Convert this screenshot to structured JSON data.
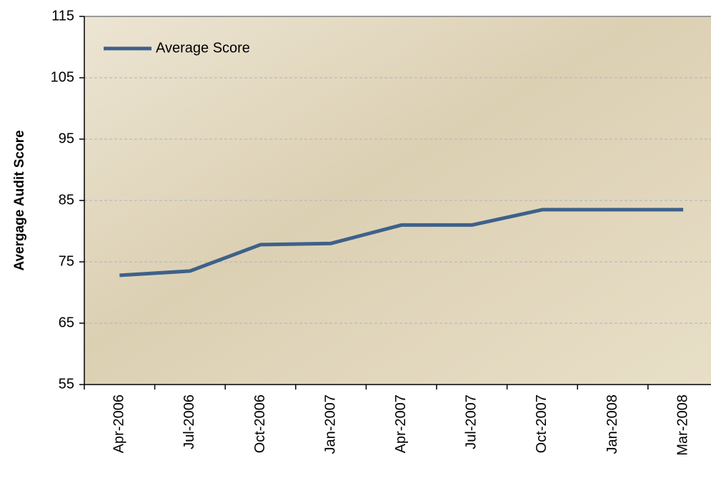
{
  "chart_data": {
    "type": "line",
    "y_label": "Avergage Audit Score",
    "categories": [
      "Apr-2006",
      "Jul-2006",
      "Oct-2006",
      "Jan-2007",
      "Apr-2007",
      "Jul-2007",
      "Oct-2007",
      "Jan-2008",
      "Mar-2008"
    ],
    "series": [
      {
        "name": "Average Score",
        "color": "#3e6189",
        "values": [
          72.8,
          73.5,
          77.8,
          78.0,
          81.0,
          81.0,
          83.5,
          83.5,
          83.5
        ]
      }
    ],
    "ylim": [
      55,
      115
    ],
    "yticks": [
      55,
      65,
      75,
      85,
      95,
      105,
      115
    ],
    "grid": true,
    "legend": "top-left"
  }
}
